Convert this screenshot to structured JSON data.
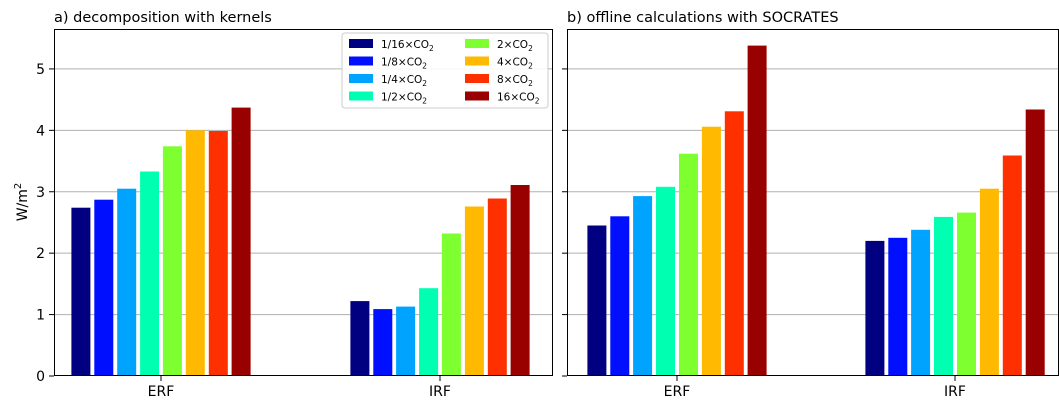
{
  "ylabel_base": "W/m",
  "ylabel_sup": "2",
  "legend_entries": [
    {
      "prefix": "1/16×CO",
      "sub": "2",
      "color": "#000080"
    },
    {
      "prefix": "1/8×CO",
      "sub": "2",
      "color": "#0010FF"
    },
    {
      "prefix": "1/4×CO",
      "sub": "2",
      "color": "#00A4FF"
    },
    {
      "prefix": "1/2×CO",
      "sub": "2",
      "color": "#00FFB0"
    },
    {
      "prefix": "2×CO",
      "sub": "2",
      "color": "#7DFF30"
    },
    {
      "prefix": "4×CO",
      "sub": "2",
      "color": "#FFB900"
    },
    {
      "prefix": "8×CO",
      "sub": "2",
      "color": "#FF3000"
    },
    {
      "prefix": "16×CO",
      "sub": "2",
      "color": "#990000"
    }
  ],
  "chart_data": [
    {
      "type": "bar",
      "title": "a) decomposition with kernels",
      "ylabel": "W/m2",
      "ylim": [
        0,
        5.65
      ],
      "yticks": [
        0,
        1,
        2,
        3,
        4,
        5
      ],
      "grid": "y",
      "legend": "top-right",
      "categories": [
        "ERF",
        "IRF"
      ],
      "series": [
        {
          "name": "1/16×CO2",
          "values": [
            2.74,
            1.22
          ]
        },
        {
          "name": "1/8×CO2",
          "values": [
            2.87,
            1.09
          ]
        },
        {
          "name": "1/4×CO2",
          "values": [
            3.05,
            1.13
          ]
        },
        {
          "name": "1/2×CO2",
          "values": [
            3.33,
            1.43
          ]
        },
        {
          "name": "2×CO2",
          "values": [
            3.74,
            2.32
          ]
        },
        {
          "name": "4×CO2",
          "values": [
            4.0,
            2.76
          ]
        },
        {
          "name": "8×CO2",
          "values": [
            3.99,
            2.89
          ]
        },
        {
          "name": "16×CO2",
          "values": [
            4.37,
            3.11
          ]
        }
      ]
    },
    {
      "type": "bar",
      "title": "b) offline calculations with SOCRATES",
      "ylim": [
        0,
        5.65
      ],
      "yticks": [
        0,
        1,
        2,
        3,
        4,
        5
      ],
      "grid": "y",
      "categories": [
        "ERF",
        "IRF"
      ],
      "series": [
        {
          "name": "1/16×CO2",
          "values": [
            2.45,
            2.2
          ]
        },
        {
          "name": "1/8×CO2",
          "values": [
            2.6,
            2.25
          ]
        },
        {
          "name": "1/4×CO2",
          "values": [
            2.93,
            2.38
          ]
        },
        {
          "name": "1/2×CO2",
          "values": [
            3.08,
            2.59
          ]
        },
        {
          "name": "2×CO2",
          "values": [
            3.62,
            2.66
          ]
        },
        {
          "name": "4×CO2",
          "values": [
            4.06,
            3.05
          ]
        },
        {
          "name": "8×CO2",
          "values": [
            4.31,
            3.59
          ]
        },
        {
          "name": "16×CO2",
          "values": [
            5.38,
            4.34
          ]
        }
      ]
    }
  ]
}
